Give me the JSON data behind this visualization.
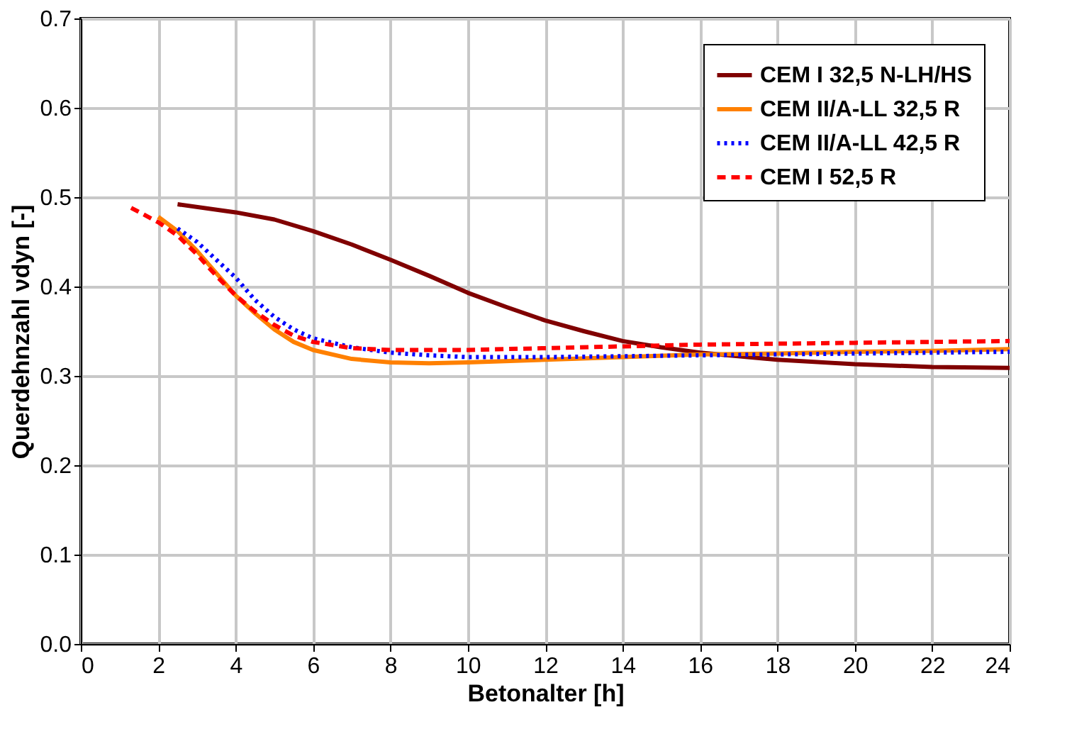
{
  "chart_data": {
    "type": "line",
    "xlabel": "Betonalter [h]",
    "ylabel": "Querdehnzahl νdyn [-]",
    "xlim": [
      0,
      24
    ],
    "xticks": [
      0,
      2,
      4,
      6,
      8,
      10,
      12,
      14,
      16,
      18,
      20,
      22,
      24
    ],
    "ylim": [
      0,
      0.7
    ],
    "yticks": [
      {
        "value": 0,
        "label": "0.0"
      },
      0.1,
      0.2,
      0.3,
      0.4,
      0.5,
      0.6,
      0.7
    ],
    "grid": true,
    "legend": "top right",
    "series": [
      {
        "name": "CEM I 32,5 N-LH/HS",
        "color": "#800000",
        "line_style": "solid",
        "x": [
          2.5,
          4,
          5,
          6,
          7,
          8,
          9,
          10,
          11,
          12,
          13,
          14,
          15,
          16,
          18,
          20,
          22,
          24
        ],
        "values": [
          0.492,
          0.483,
          0.475,
          0.462,
          0.447,
          0.43,
          0.412,
          0.393,
          0.377,
          0.362,
          0.35,
          0.339,
          0.332,
          0.326,
          0.318,
          0.313,
          0.31,
          0.309
        ]
      },
      {
        "name": "CEM II/A-LL 32,5 R",
        "color": "#ff8000",
        "line_style": "solid",
        "x": [
          2,
          2.5,
          3,
          3.5,
          4,
          4.5,
          5,
          5.5,
          6,
          7,
          8,
          9,
          10,
          12,
          14,
          16,
          18,
          20,
          22,
          24
        ],
        "values": [
          0.478,
          0.462,
          0.44,
          0.415,
          0.39,
          0.37,
          0.352,
          0.338,
          0.329,
          0.319,
          0.315,
          0.314,
          0.315,
          0.318,
          0.321,
          0.324,
          0.325,
          0.327,
          0.328,
          0.33
        ]
      },
      {
        "name": "CEM II/A-LL 42,5 R",
        "color": "#0000ff",
        "line_style": "dotted",
        "x": [
          2.5,
          3,
          3.5,
          4,
          4.5,
          5,
          5.5,
          6,
          7,
          8,
          9,
          10,
          12,
          14,
          16,
          18,
          20,
          22,
          24
        ],
        "values": [
          0.465,
          0.45,
          0.43,
          0.41,
          0.385,
          0.366,
          0.352,
          0.342,
          0.332,
          0.326,
          0.323,
          0.321,
          0.321,
          0.322,
          0.323,
          0.324,
          0.325,
          0.326,
          0.327
        ]
      },
      {
        "name": "CEM I 52,5 R",
        "color": "#ff0000",
        "line_style": "dashed",
        "x": [
          1.3,
          2,
          2.5,
          3,
          3.5,
          4,
          4.5,
          5,
          5.5,
          6,
          7,
          8,
          10,
          12,
          14,
          16,
          18,
          20,
          22,
          24
        ],
        "values": [
          0.488,
          0.472,
          0.457,
          0.436,
          0.412,
          0.39,
          0.372,
          0.357,
          0.345,
          0.338,
          0.331,
          0.329,
          0.329,
          0.331,
          0.333,
          0.335,
          0.336,
          0.337,
          0.338,
          0.339
        ]
      }
    ]
  }
}
